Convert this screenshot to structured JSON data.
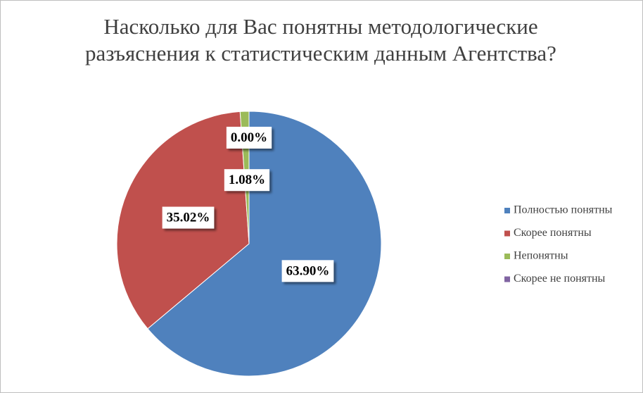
{
  "chart_data": {
    "type": "pie",
    "title": "Насколько для Вас понятны методологические разъяснения к статистическим данным Агентства?",
    "categories": [
      "Полностью понятны",
      "Скорее понятны",
      "Непонятны",
      "Скорее не понятны"
    ],
    "values": [
      63.9,
      35.02,
      1.08,
      0
    ],
    "value_labels": [
      "63.90%",
      "35.02%",
      "1.08%",
      "0.00%"
    ],
    "colors": [
      "#4f81bd",
      "#c0504d",
      "#9bbb59",
      "#8064a2"
    ],
    "legend": "right"
  }
}
